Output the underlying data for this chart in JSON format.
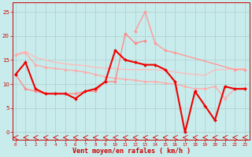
{
  "xlabel": "Vent moyen/en rafales ( km/h )",
  "background_color": "#c8ecec",
  "grid_color": "#b0cccc",
  "x_ticks": [
    0,
    1,
    2,
    3,
    4,
    5,
    6,
    7,
    8,
    9,
    10,
    11,
    12,
    13,
    14,
    15,
    16,
    17,
    18,
    19,
    20,
    21,
    22,
    23
  ],
  "ylim": [
    -1.5,
    27
  ],
  "xlim": [
    -0.3,
    23.5
  ],
  "yticks": [
    0,
    5,
    10,
    15,
    20,
    25
  ],
  "lines": [
    {
      "x": [
        0,
        1,
        2,
        3,
        4,
        5,
        6,
        7,
        8,
        9,
        10,
        11,
        12,
        13,
        14,
        15,
        16,
        17,
        18,
        19,
        20,
        21,
        22,
        23
      ],
      "y": [
        16.2,
        16.8,
        15.5,
        15.0,
        14.5,
        14.2,
        14.0,
        13.8,
        13.5,
        13.3,
        13.2,
        13.0,
        13.0,
        13.0,
        13.0,
        12.8,
        12.5,
        12.2,
        12.0,
        11.8,
        13.0,
        13.0,
        13.2,
        13.2
      ],
      "color": "#ffbbbb",
      "linewidth": 1.0,
      "marker": null
    },
    {
      "x": [
        0,
        1,
        2,
        3,
        4,
        5,
        6,
        7,
        8,
        9,
        10,
        11,
        12,
        13,
        14,
        15,
        16,
        17,
        18,
        19,
        20,
        21,
        22,
        23
      ],
      "y": [
        16.0,
        16.5,
        14.0,
        13.5,
        13.2,
        13.0,
        12.8,
        12.5,
        12.0,
        11.5,
        11.2,
        11.0,
        10.8,
        10.5,
        10.5,
        10.2,
        10.0,
        9.5,
        9.0,
        9.0,
        9.5,
        7.0,
        9.0,
        9.2
      ],
      "color": "#ffaaaa",
      "linewidth": 1.0,
      "marker": "D",
      "markersize": 2.0
    },
    {
      "x": [
        0,
        1,
        2,
        3,
        4,
        5,
        6,
        7,
        8,
        9,
        10,
        11,
        12,
        13,
        14,
        15,
        16,
        17,
        18,
        19,
        20,
        21,
        22,
        23
      ],
      "y": [
        12.0,
        9.0,
        8.5,
        8.0,
        8.0,
        8.0,
        8.0,
        8.5,
        8.5,
        10.5,
        10.5,
        20.5,
        18.5,
        19.0,
        null,
        null,
        null,
        null,
        null,
        null,
        null,
        null,
        null,
        null
      ],
      "color": "#ff8888",
      "linewidth": 1.0,
      "marker": "D",
      "markersize": 2.0
    },
    {
      "x": [
        11,
        12,
        13,
        14,
        15,
        16,
        22,
        23
      ],
      "y": [
        null,
        21.0,
        25.0,
        18.5,
        17.0,
        16.5,
        13.0,
        13.0
      ],
      "color": "#ff9999",
      "linewidth": 1.0,
      "marker": "D",
      "markersize": 2.0
    },
    {
      "x": [
        0,
        1,
        2,
        3,
        4,
        5,
        6,
        7,
        8,
        9,
        10,
        11,
        12,
        13,
        14,
        15,
        16,
        17,
        18,
        19,
        20,
        21,
        22,
        23
      ],
      "y": [
        12.0,
        14.5,
        9.0,
        8.0,
        8.0,
        8.0,
        7.0,
        8.5,
        9.0,
        10.5,
        17.0,
        15.0,
        14.5,
        14.0,
        14.0,
        13.0,
        10.5,
        0.0,
        8.5,
        5.5,
        2.5,
        9.5,
        9.0,
        9.0
      ],
      "color": "#ee0000",
      "linewidth": 1.5,
      "marker": "D",
      "markersize": 2.0
    }
  ],
  "wind_arrow_color": "#dd0000",
  "tick_color": "#cc0000",
  "label_color": "#cc0000",
  "spine_color": "#cc0000"
}
